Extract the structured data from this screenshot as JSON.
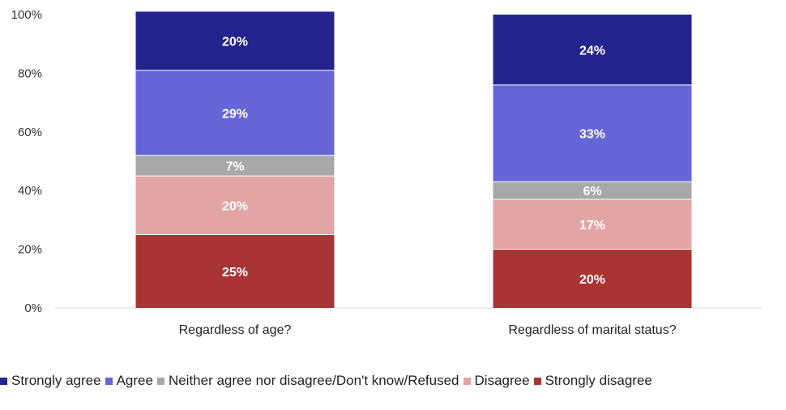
{
  "chart_data": {
    "type": "bar",
    "stacked": true,
    "categories": [
      "Regardless of age?",
      "Regardless of marital status?"
    ],
    "series": [
      {
        "name": "Strongly disagree",
        "color": "#a83434",
        "values": [
          25,
          20
        ],
        "labels": [
          "25%",
          "20%"
        ]
      },
      {
        "name": "Disagree",
        "color": "#e2a4a4",
        "values": [
          20,
          17
        ],
        "labels": [
          "20%",
          "17%"
        ]
      },
      {
        "name": "Neither agree nor disagree/Don't know/Refused",
        "color": "#a8a8a8",
        "values": [
          7,
          6
        ],
        "labels": [
          "7%",
          "6%"
        ]
      },
      {
        "name": "Agree",
        "color": "#6666d8",
        "values": [
          29,
          33
        ],
        "labels": [
          "29%",
          "33%"
        ]
      },
      {
        "name": "Strongly agree",
        "color": "#24248f",
        "values": [
          20,
          24
        ],
        "labels": [
          "20%",
          "24%"
        ]
      }
    ],
    "y_ticks": [
      "0%",
      "20%",
      "40%",
      "60%",
      "80%",
      "100%"
    ],
    "ylim": [
      0,
      100
    ],
    "grid": false,
    "legend": "bottom"
  }
}
